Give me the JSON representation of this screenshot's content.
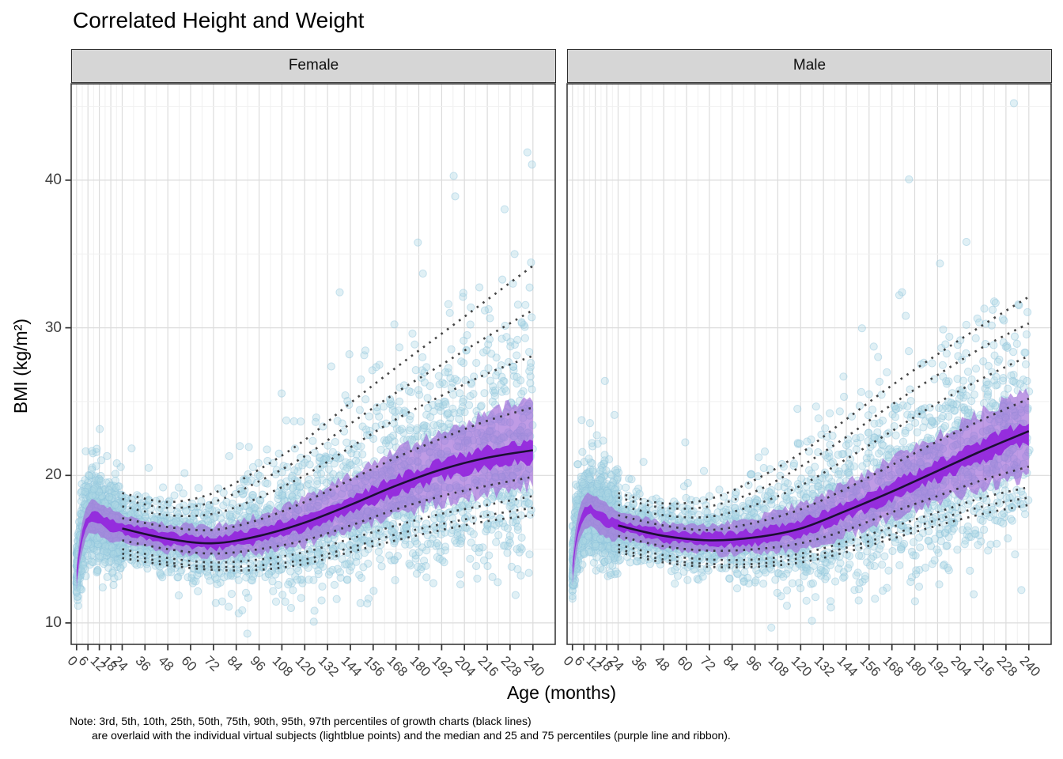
{
  "chart_data": {
    "type": "scatter",
    "title": "Correlated Height and Weight",
    "xlabel": "Age (months)",
    "ylabel": "BMI (kg/m²)",
    "facets": [
      {
        "label": "Female"
      },
      {
        "label": "Male"
      }
    ],
    "x_ticks": [
      0,
      6,
      12,
      18,
      24,
      36,
      48,
      60,
      72,
      84,
      96,
      108,
      120,
      132,
      144,
      156,
      168,
      180,
      192,
      204,
      216,
      228,
      240
    ],
    "x_minor": [
      3,
      9,
      15,
      21,
      30,
      42,
      54,
      66,
      78,
      90,
      102,
      114,
      126,
      138,
      150,
      162,
      174,
      186,
      198,
      210,
      222,
      234
    ],
    "y_ticks": [
      10,
      20,
      30,
      40
    ],
    "y_minor": [
      15,
      25,
      35,
      45
    ],
    "xlim": [
      0,
      240
    ],
    "ylim": [
      8.55,
      46.55
    ],
    "grid": "major+minor",
    "legend_position": "none",
    "percentile_labels": [
      "3rd",
      "5th",
      "10th",
      "25th",
      "50th",
      "75th",
      "90th",
      "95th",
      "97th"
    ],
    "percentile_ages": [
      24,
      48,
      72,
      96,
      120,
      144,
      168,
      192,
      216,
      240
    ],
    "series": {
      "Female": {
        "P3": [
          14.4,
          13.9,
          13.6,
          13.6,
          14.0,
          14.8,
          15.6,
          16.3,
          16.9,
          17.3
        ],
        "P5": [
          14.7,
          14.1,
          13.8,
          13.9,
          14.3,
          15.1,
          16.0,
          16.7,
          17.3,
          17.8
        ],
        "P10": [
          15.0,
          14.4,
          14.1,
          14.3,
          14.8,
          15.7,
          16.6,
          17.4,
          18.0,
          18.6
        ],
        "P25": [
          15.6,
          15.0,
          14.7,
          15.0,
          15.6,
          16.6,
          17.7,
          18.6,
          19.3,
          19.9
        ],
        "P50": [
          16.4,
          15.7,
          15.4,
          15.9,
          16.8,
          18.0,
          19.3,
          20.4,
          21.2,
          21.7
        ],
        "P75": [
          17.1,
          16.5,
          16.3,
          17.0,
          18.2,
          19.7,
          21.2,
          22.5,
          23.7,
          24.6
        ],
        "P90": [
          17.9,
          17.3,
          17.4,
          18.5,
          20.0,
          21.9,
          23.8,
          25.4,
          26.9,
          28.1
        ],
        "P95": [
          18.4,
          17.8,
          18.2,
          19.6,
          21.3,
          23.5,
          25.6,
          27.5,
          29.4,
          31.2
        ],
        "P97": [
          18.8,
          18.2,
          18.8,
          20.4,
          22.4,
          24.9,
          27.3,
          29.6,
          31.9,
          34.2
        ],
        "median_curve": [
          [
            0,
            13.2
          ],
          [
            1,
            14.3
          ],
          [
            2,
            15.3
          ],
          [
            3,
            15.9
          ],
          [
            4,
            16.4
          ],
          [
            6,
            17.0
          ],
          [
            8,
            17.2
          ],
          [
            10,
            17.2
          ],
          [
            12,
            17.0
          ],
          [
            15,
            16.8
          ],
          [
            18,
            16.6
          ],
          [
            21,
            16.5
          ],
          [
            24,
            16.4
          ]
        ],
        "seed": 20240101
      },
      "Male": {
        "P3": [
          14.8,
          14.1,
          13.8,
          13.8,
          14.1,
          14.8,
          15.7,
          16.6,
          17.4,
          18.0
        ],
        "P5": [
          15.0,
          14.3,
          14.0,
          14.0,
          14.4,
          15.1,
          16.0,
          17.0,
          17.9,
          18.5
        ],
        "P10": [
          15.3,
          14.6,
          14.3,
          14.3,
          14.7,
          15.5,
          16.5,
          17.5,
          18.5,
          19.2
        ],
        "P25": [
          15.9,
          15.2,
          14.9,
          15.0,
          15.4,
          16.3,
          17.5,
          18.6,
          19.7,
          20.6
        ],
        "P50": [
          16.6,
          15.9,
          15.6,
          15.8,
          16.4,
          17.6,
          18.9,
          20.3,
          21.7,
          23.0
        ],
        "P75": [
          17.3,
          16.6,
          16.3,
          16.8,
          17.7,
          19.1,
          20.7,
          22.3,
          23.8,
          25.2
        ],
        "P90": [
          18.0,
          17.3,
          17.2,
          18.0,
          19.3,
          21.1,
          23.0,
          24.9,
          26.6,
          28.1
        ],
        "P95": [
          18.5,
          17.8,
          17.9,
          18.9,
          20.6,
          22.6,
          24.8,
          26.8,
          28.7,
          30.3
        ],
        "P97": [
          18.8,
          18.1,
          18.4,
          19.7,
          21.5,
          23.8,
          26.1,
          28.2,
          30.2,
          32.1
        ],
        "median_curve": [
          [
            0,
            13.5
          ],
          [
            1,
            14.7
          ],
          [
            2,
            15.7
          ],
          [
            3,
            16.3
          ],
          [
            4,
            16.8
          ],
          [
            6,
            17.4
          ],
          [
            8,
            17.6
          ],
          [
            10,
            17.6
          ],
          [
            12,
            17.4
          ],
          [
            15,
            17.1
          ],
          [
            18,
            16.9
          ],
          [
            21,
            16.7
          ],
          [
            24,
            16.6
          ]
        ],
        "seed": 987654321
      }
    },
    "n_points_per_facet": 3400,
    "point_radius": 4.6,
    "colors": {
      "point_fill": "#ADD8E6",
      "point_stroke": "#8FC4DB",
      "ribbon": "#A06BD8",
      "median_band": "#9326DD",
      "p50_line": "#1C0E33",
      "dotted_line": "#262626",
      "grid_major": "#DCDCDC",
      "grid_minor": "#F0F0F0",
      "panel_border": "#2E2E2E",
      "strip_bg": "#D6D6D6",
      "tick_label": "#404040"
    }
  },
  "note": {
    "line1": "Note: 3rd, 5th, 10th, 25th, 50th, 75th, 90th, 95th, 97th percentiles of growth charts (black lines)",
    "line2": "are overlaid with the individual virtual subjects (lightblue points) and the median and 25 and 75 percentiles (purple line and ribbon)."
  }
}
